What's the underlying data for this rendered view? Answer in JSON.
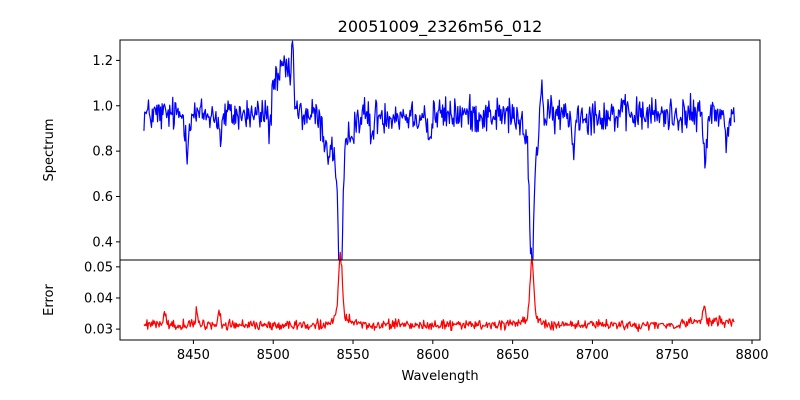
{
  "chart_data": {
    "type": "line",
    "title": "20051009_2326m56_012",
    "xlabel": "Wavelength",
    "x_range": [
      8419,
      8789
    ],
    "xlim": [
      8404,
      8805
    ],
    "xticks": [
      8450,
      8500,
      8550,
      8600,
      8650,
      8700,
      8750,
      8800
    ],
    "panels": [
      {
        "name": "spectrum",
        "ylabel": "Spectrum",
        "ylim": [
          0.32,
          1.29
        ],
        "yticks": [
          0.4,
          0.6,
          0.8,
          1.0,
          1.2
        ],
        "ytick_labels": [
          "0.4",
          "0.6",
          "0.8",
          "1.0",
          "1.2"
        ],
        "series": [
          {
            "color": "#0000ff",
            "baseline": 0.96,
            "noise": 0.055,
            "features": [
              {
                "x": 8446,
                "depth": -0.13,
                "width": 1.0
              },
              {
                "x": 8467,
                "depth": -0.1,
                "width": 1.0
              },
              {
                "x": 8498,
                "depth": -0.16,
                "width": 0.8
              },
              {
                "x": 8500,
                "depth": 0.14,
                "width": 2.0
              },
              {
                "x": 8507,
                "depth": 0.22,
                "width": 3.0
              },
              {
                "x": 8512,
                "depth": 0.26,
                "width": 0.8
              },
              {
                "x": 8534,
                "depth": -0.1,
                "width": 3.0
              },
              {
                "x": 8542.1,
                "depth": -0.62,
                "width": 1.3
              },
              {
                "x": 8542.1,
                "depth": -0.18,
                "width": 5.0
              },
              {
                "x": 8562,
                "depth": -0.1,
                "width": 1.0
              },
              {
                "x": 8598,
                "depth": -0.12,
                "width": 1.0
              },
              {
                "x": 8662.1,
                "depth": -0.52,
                "width": 1.2
              },
              {
                "x": 8662.1,
                "depth": -0.16,
                "width": 4.5
              },
              {
                "x": 8668,
                "depth": 0.22,
                "width": 0.8
              },
              {
                "x": 8688,
                "depth": -0.13,
                "width": 1.0
              },
              {
                "x": 8770.5,
                "depth": -0.22,
                "width": 0.8
              },
              {
                "x": 8784,
                "depth": -0.1,
                "width": 1.0
              }
            ]
          }
        ]
      },
      {
        "name": "error",
        "ylabel": "Error",
        "ylim": [
          0.0265,
          0.0522
        ],
        "yticks": [
          0.03,
          0.04,
          0.05
        ],
        "ytick_labels": [
          "0.03",
          "0.04",
          "0.05"
        ],
        "series": [
          {
            "color": "#ff0000",
            "baseline": 0.0313,
            "noise": 0.0011,
            "features": [
              {
                "x": 8432,
                "depth": 0.0052,
                "width": 0.7
              },
              {
                "x": 8452,
                "depth": 0.004,
                "width": 0.7
              },
              {
                "x": 8466,
                "depth": 0.0048,
                "width": 0.8
              },
              {
                "x": 8542.1,
                "depth": 0.0195,
                "width": 1.2
              },
              {
                "x": 8542.1,
                "depth": 0.0025,
                "width": 5.0
              },
              {
                "x": 8662.1,
                "depth": 0.0185,
                "width": 1.1
              },
              {
                "x": 8662.1,
                "depth": 0.0025,
                "width": 4.5
              },
              {
                "x": 8770,
                "depth": 0.005,
                "width": 0.7
              },
              {
                "x": 8775,
                "depth": 0.0015,
                "width": 10.0
              }
            ]
          }
        ]
      }
    ]
  }
}
